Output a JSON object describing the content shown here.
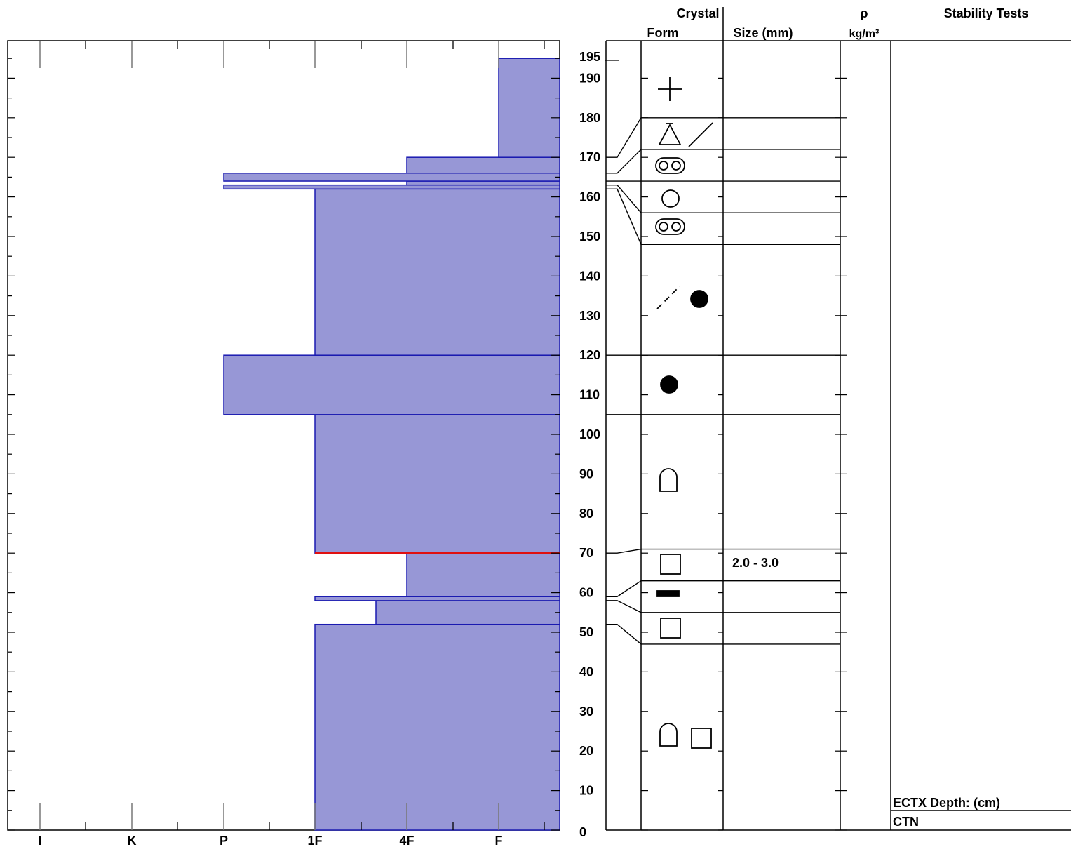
{
  "header": {
    "crystal": "Crystal",
    "form": "Form",
    "size": "Size (mm)",
    "rho": "ρ",
    "density_unit": "kg/m³",
    "stability": "Stability Tests"
  },
  "hardness_axis": {
    "labels": [
      "I",
      "K",
      "P",
      "1F",
      "4F",
      "F"
    ]
  },
  "depth_axis": {
    "top_label": "195",
    "labels": [
      "0",
      "10",
      "20",
      "30",
      "40",
      "50",
      "60",
      "70",
      "80",
      "90",
      "100",
      "110",
      "120",
      "130",
      "140",
      "150",
      "160",
      "170",
      "180",
      "190"
    ]
  },
  "stability": {
    "test_header": "ECTX  Depth: (cm)",
    "result": "CTN"
  },
  "colors": {
    "bar_fill": "#9797d6",
    "bar_stroke": "#1a1ab0",
    "weak_layer": "#e01010",
    "line": "#000000"
  },
  "chart_data": {
    "type": "bar",
    "orientation": "horizontal",
    "description_x": "Hand hardness (right-anchored at F)",
    "hardness_scale": [
      "I",
      "K",
      "P",
      "1F",
      "4F",
      "F"
    ],
    "ylim": [
      0,
      195
    ],
    "layers": [
      {
        "bottom": 0,
        "top": 52,
        "hardness": "1F"
      },
      {
        "bottom": 52,
        "top": 58,
        "hardness": "4F-1F"
      },
      {
        "bottom": 58,
        "top": 59,
        "hardness": "1F"
      },
      {
        "bottom": 59,
        "top": 70,
        "hardness": "4F"
      },
      {
        "bottom": 70,
        "top": 105,
        "hardness": "1F"
      },
      {
        "bottom": 105,
        "top": 120,
        "hardness": "P"
      },
      {
        "bottom": 120,
        "top": 162,
        "hardness": "1F"
      },
      {
        "bottom": 162,
        "top": 163,
        "hardness": "P"
      },
      {
        "bottom": 163,
        "top": 164,
        "hardness": "4F"
      },
      {
        "bottom": 164,
        "top": 166,
        "hardness": "P"
      },
      {
        "bottom": 166,
        "top": 170,
        "hardness": "4F"
      },
      {
        "bottom": 170,
        "top": 195,
        "hardness": "F"
      }
    ],
    "weak_layer_depth": 70,
    "crystal_layers": [
      {
        "bottom": 0,
        "top": 47,
        "forms": [
          "faceted-rounded",
          "faceted"
        ]
      },
      {
        "bottom": 47,
        "top": 55,
        "forms": [
          "faceted"
        ]
      },
      {
        "bottom": 55,
        "top": 63,
        "forms": [
          "crust"
        ]
      },
      {
        "bottom": 63,
        "top": 71,
        "forms": [
          "faceted"
        ],
        "size": "2.0 -  3.0"
      },
      {
        "bottom": 71,
        "top": 105,
        "forms": [
          "faceted-rounded"
        ]
      },
      {
        "bottom": 105,
        "top": 120,
        "forms": [
          "rounded"
        ]
      },
      {
        "bottom": 120,
        "top": 148,
        "forms": [
          "decomposing",
          "rounded"
        ]
      },
      {
        "bottom": 148,
        "top": 156,
        "forms": [
          "melt-forms"
        ]
      },
      {
        "bottom": 156,
        "top": 164,
        "forms": [
          "melt-freeze"
        ]
      },
      {
        "bottom": 164,
        "top": 172,
        "forms": [
          "melt-forms"
        ]
      },
      {
        "bottom": 172,
        "top": 180,
        "forms": [
          "surface-hoar",
          "decomposing"
        ]
      },
      {
        "bottom": 180,
        "top": 195,
        "forms": [
          "precipitation"
        ]
      }
    ]
  }
}
